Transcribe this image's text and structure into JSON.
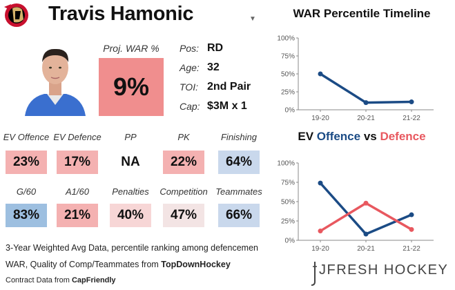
{
  "player": {
    "name": "Travis Hamonic"
  },
  "colors": {
    "high": "#f08e8e",
    "mid_low": "#f4b1b1",
    "low": "#f7d6d6",
    "neutral": "#f3e4e4",
    "good": "#c9d8ec",
    "great": "#9dbfe0",
    "blue": "#1b4b85",
    "red": "#e8585f"
  },
  "proj_war": {
    "label": "Proj. WAR %",
    "value": "9%"
  },
  "info": [
    {
      "label": "Pos:",
      "value": "RD"
    },
    {
      "label": "Age:",
      "value": "32"
    },
    {
      "label": "TOI:",
      "value": "2nd Pair"
    },
    {
      "label": "Cap:",
      "value": "$3M x 1"
    }
  ],
  "stats_row1": [
    {
      "label": "EV Offence",
      "value": "23%"
    },
    {
      "label": "EV Defence",
      "value": "17%"
    },
    {
      "label": "PP",
      "value": "NA"
    },
    {
      "label": "PK",
      "value": "22%"
    },
    {
      "label": "Finishing",
      "value": "64%"
    }
  ],
  "stats_row2": [
    {
      "label": "G/60",
      "value": "83%"
    },
    {
      "label": "A1/60",
      "value": "21%"
    },
    {
      "label": "Penalties",
      "value": "40%"
    },
    {
      "label": "Competition",
      "value": "47%"
    },
    {
      "label": "Teammates",
      "value": "66%"
    }
  ],
  "footer": {
    "line1": "3-Year Weighted Avg Data, percentile ranking among defencemen",
    "line2_prefix": "WAR, Quality of Comp/Teammates from ",
    "line2_source": "TopDownHockey",
    "line3_prefix": "Contract Data from ",
    "line3_source": "CapFriendly"
  },
  "brand": "JFRESH HOCKEY",
  "chart_data": [
    {
      "type": "line",
      "title": "WAR Percentile Timeline",
      "categories": [
        "19-20",
        "20-21",
        "21-22"
      ],
      "series": [
        {
          "values": [
            50,
            10,
            11
          ],
          "color": "#1b4b85"
        }
      ],
      "ylim": [
        0,
        100
      ],
      "yticks": [
        "0%",
        "25%",
        "50%",
        "75%",
        "100%"
      ],
      "grid": false
    },
    {
      "type": "line",
      "title_parts": {
        "a": "EV ",
        "b": "Offence",
        "c": " vs ",
        "d": "Defence"
      },
      "categories": [
        "19-20",
        "20-21",
        "21-22"
      ],
      "series": [
        {
          "name": "Offence",
          "values": [
            74,
            8,
            33
          ],
          "color": "#1b4b85"
        },
        {
          "name": "Defence",
          "values": [
            12,
            48,
            14
          ],
          "color": "#e8585f"
        }
      ],
      "ylim": [
        0,
        100
      ],
      "yticks": [
        "0%",
        "25%",
        "50%",
        "75%",
        "100%"
      ],
      "grid": false
    }
  ]
}
